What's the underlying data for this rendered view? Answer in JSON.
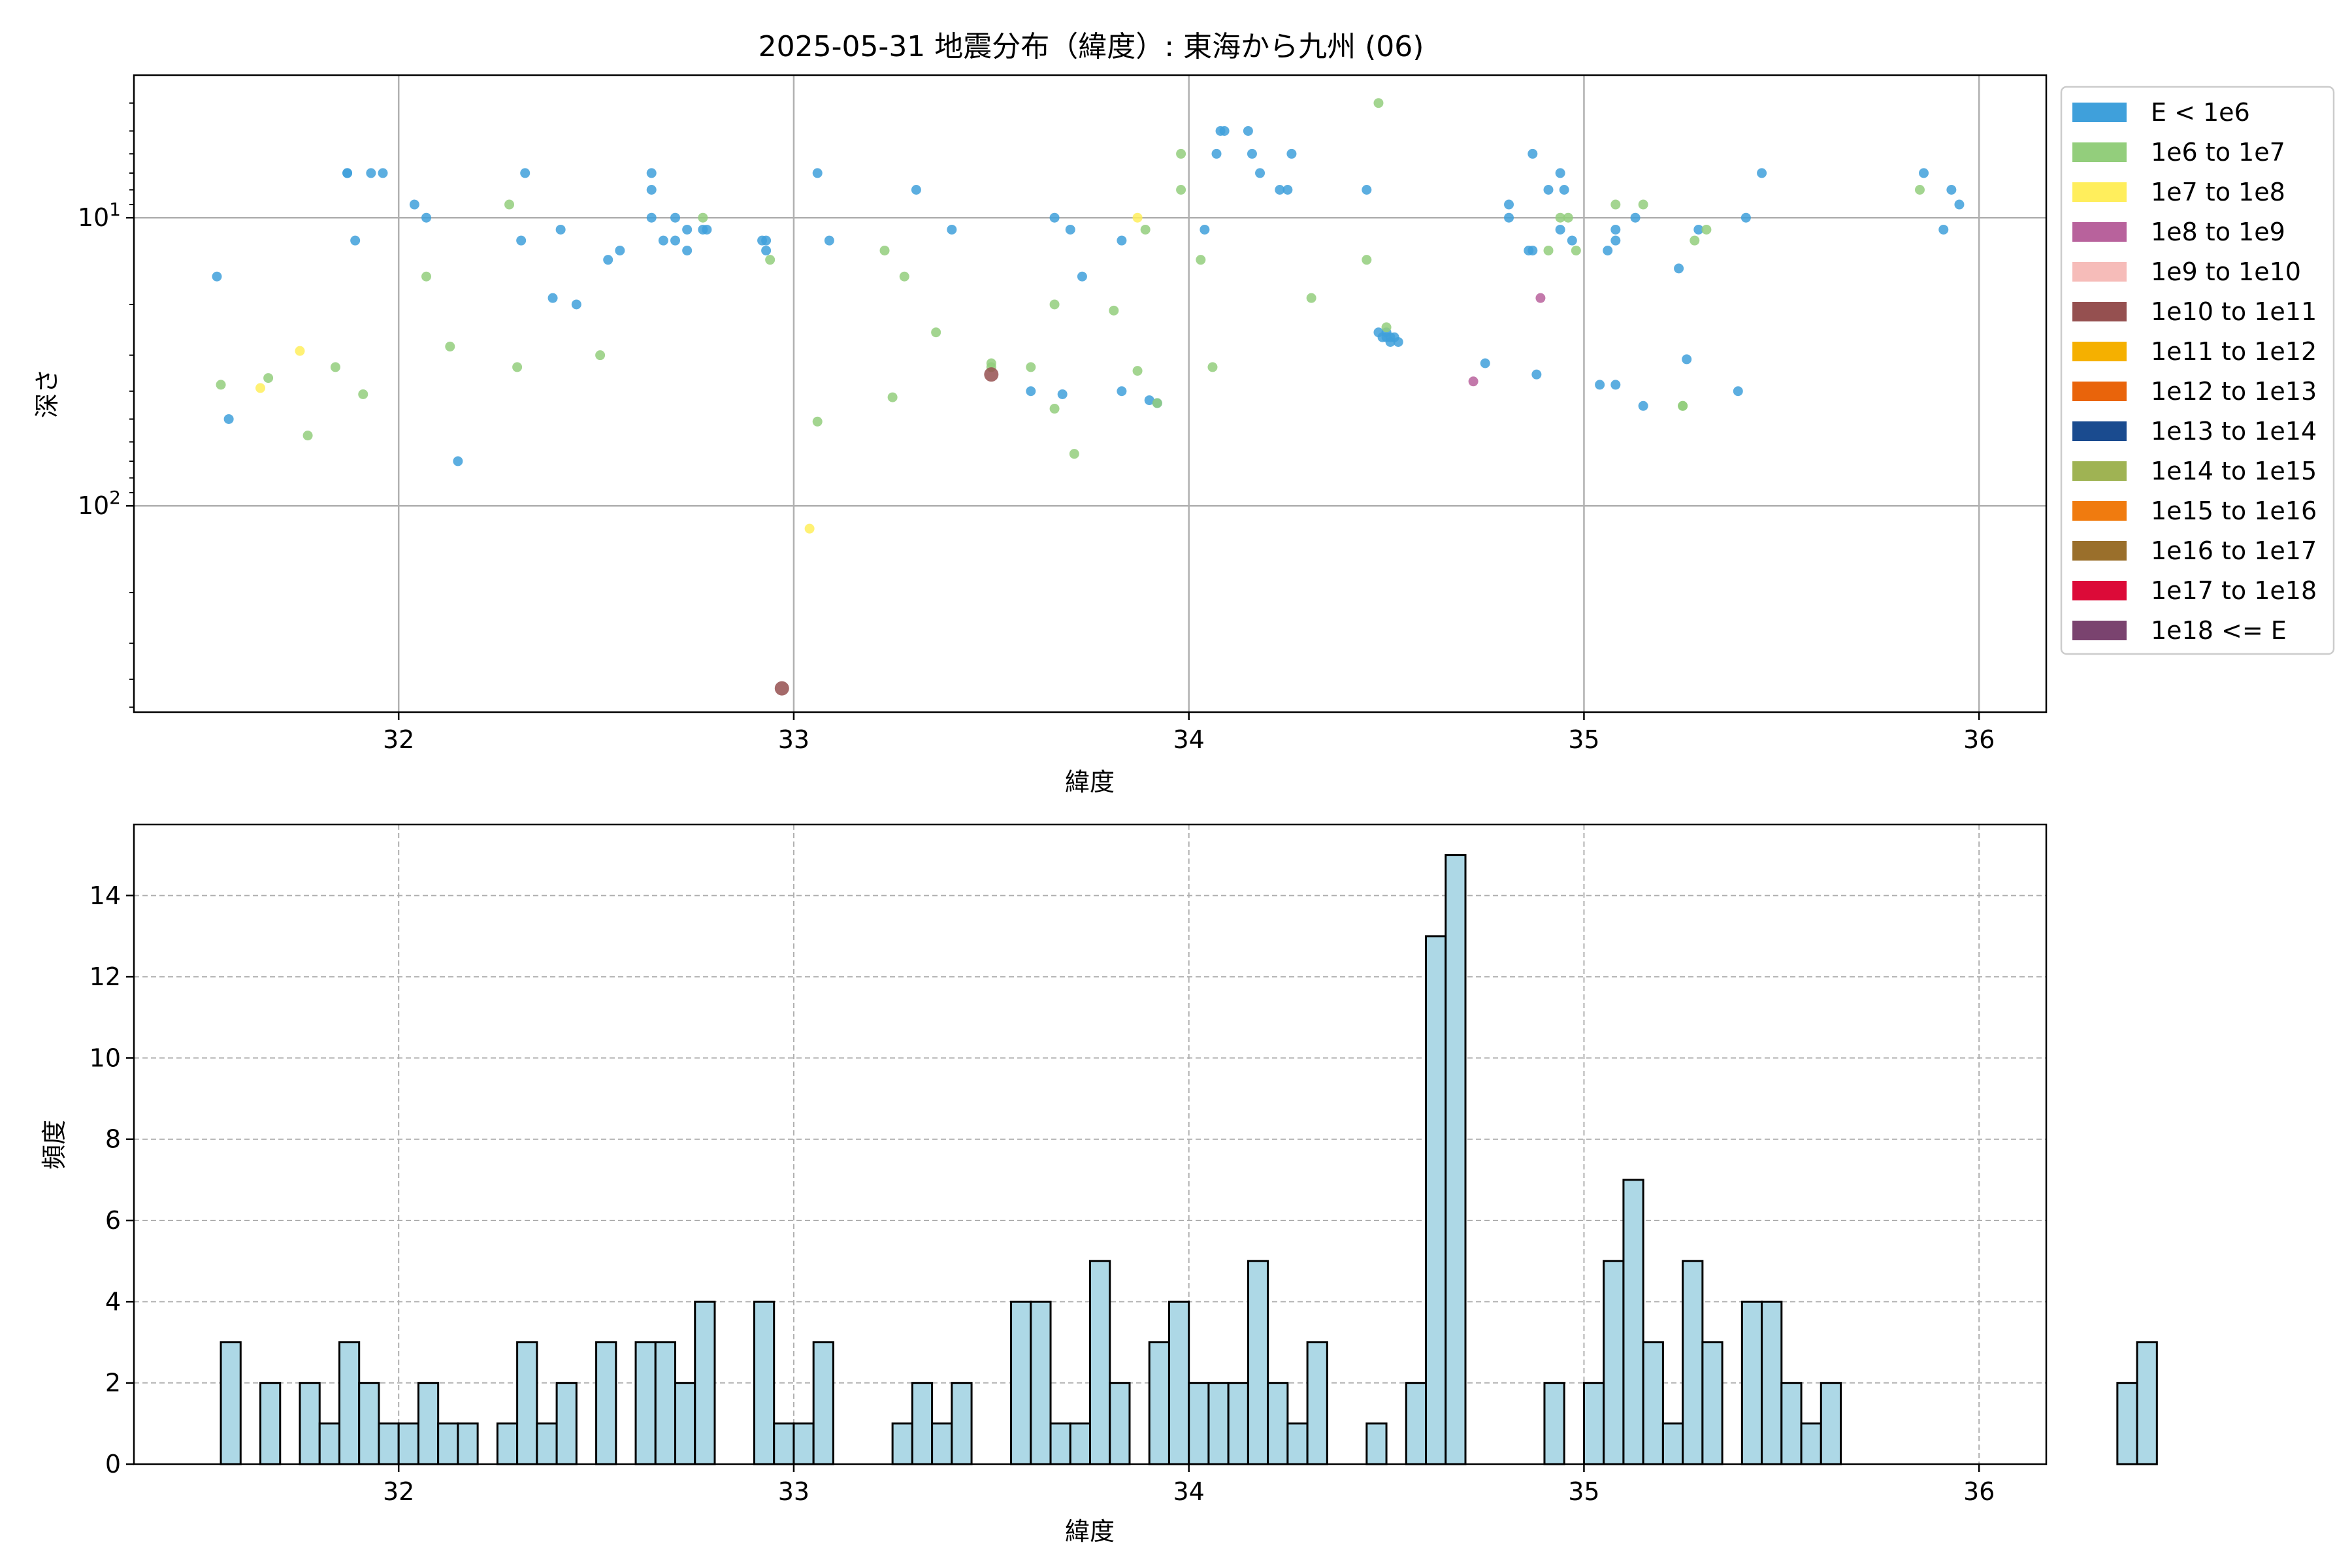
{
  "title": "2025-05-31 地震分布（緯度）: 東海から九州 (06)",
  "chart_data": [
    {
      "type": "scatter",
      "xlabel": "緯度",
      "ylabel": "深さ",
      "xlim": [
        31.33,
        36.17
      ],
      "ylim": [
        520,
        3.2
      ],
      "yscale": "log",
      "y_inverted": true,
      "grid": true,
      "xticks": [
        32,
        33,
        34,
        35,
        36
      ],
      "yticks": [
        {
          "value": 10,
          "label": "10^1"
        },
        {
          "value": 100,
          "label": "10^2"
        }
      ],
      "legend_position": "outside-right",
      "legend": [
        {
          "label": "E < 1e6",
          "color": "#3fa0db"
        },
        {
          "label": "1e6 to 1e7",
          "color": "#93ce7c"
        },
        {
          "label": "1e7 to 1e8",
          "color": "#ffee5c"
        },
        {
          "label": "1e8 to 1e9",
          "color": "#b8629c"
        },
        {
          "label": "1e9 to 1e10",
          "color": "#f6bcb9"
        },
        {
          "label": "1e10 to 1e11",
          "color": "#955050"
        },
        {
          "label": "1e11 to 1e12",
          "color": "#f5b000"
        },
        {
          "label": "1e12 to 1e13",
          "color": "#e9640b"
        },
        {
          "label": "1e13 to 1e14",
          "color": "#1a4b8f"
        },
        {
          "label": "1e14 to 1e15",
          "color": "#9fb353"
        },
        {
          "label": "1e15 to 1e16",
          "color": "#f07b0f"
        },
        {
          "label": "1e16 to 1e17",
          "color": "#9a6f2b"
        },
        {
          "label": "1e17 to 1e18",
          "color": "#dc0a38"
        },
        {
          "label": "1e18 <= E",
          "color": "#7a436f"
        }
      ],
      "series": [
        {
          "class": 0,
          "points": [
            [
              31.54,
              16.0
            ],
            [
              31.57,
              50.0
            ],
            [
              31.87,
              7.0
            ],
            [
              31.87,
              7.0
            ],
            [
              31.89,
              12.0
            ],
            [
              31.93,
              7.0
            ],
            [
              31.96,
              7.0
            ],
            [
              32.04,
              9.0
            ],
            [
              32.07,
              10.0
            ],
            [
              32.15,
              70.0
            ],
            [
              32.31,
              12.0
            ],
            [
              32.32,
              7.0
            ],
            [
              32.39,
              19.0
            ],
            [
              32.41,
              11.0
            ],
            [
              32.45,
              20.0
            ],
            [
              32.53,
              14.0
            ],
            [
              32.56,
              13.0
            ],
            [
              32.64,
              7.0
            ],
            [
              32.64,
              8.0
            ],
            [
              32.64,
              10.0
            ],
            [
              32.67,
              12.0
            ],
            [
              32.7,
              12.0
            ],
            [
              32.7,
              10.0
            ],
            [
              32.73,
              11.0
            ],
            [
              32.73,
              13.0
            ],
            [
              32.77,
              11.0
            ],
            [
              32.78,
              11.0
            ],
            [
              32.92,
              12.0
            ],
            [
              32.93,
              12.0
            ],
            [
              32.93,
              13.0
            ],
            [
              33.06,
              7.0
            ],
            [
              33.09,
              12.0
            ],
            [
              33.31,
              8.0
            ],
            [
              33.4,
              11.0
            ],
            [
              33.6,
              40.0
            ],
            [
              33.66,
              10.0
            ],
            [
              33.68,
              41.0
            ],
            [
              33.7,
              11.0
            ],
            [
              33.73,
              16.0
            ],
            [
              33.83,
              40.0
            ],
            [
              33.83,
              12.0
            ],
            [
              33.9,
              43.0
            ],
            [
              33.92,
              44.0
            ],
            [
              34.04,
              11.0
            ],
            [
              34.07,
              6.0
            ],
            [
              34.08,
              5.0
            ],
            [
              34.09,
              5.0
            ],
            [
              34.15,
              5.0
            ],
            [
              34.16,
              6.0
            ],
            [
              34.18,
              7.0
            ],
            [
              34.23,
              8.0
            ],
            [
              34.25,
              8.0
            ],
            [
              34.26,
              6.0
            ],
            [
              34.45,
              8.0
            ],
            [
              34.48,
              25.0
            ],
            [
              34.49,
              26.0
            ],
            [
              34.5,
              25.0
            ],
            [
              34.51,
              27.0
            ],
            [
              34.52,
              26.0
            ],
            [
              34.53,
              27.0
            ],
            [
              34.5,
              26.0
            ],
            [
              34.51,
              26.0
            ],
            [
              34.75,
              32.0
            ],
            [
              34.81,
              9.0
            ],
            [
              34.81,
              10.0
            ],
            [
              34.86,
              13.0
            ],
            [
              34.87,
              13.0
            ],
            [
              34.88,
              35.0
            ],
            [
              34.87,
              6.0
            ],
            [
              34.91,
              8.0
            ],
            [
              34.94,
              7.0
            ],
            [
              34.95,
              8.0
            ],
            [
              34.94,
              11.0
            ],
            [
              34.97,
              12.0
            ],
            [
              35.04,
              38.0
            ],
            [
              35.06,
              13.0
            ],
            [
              35.08,
              11.0
            ],
            [
              35.08,
              12.0
            ],
            [
              35.08,
              38.0
            ],
            [
              35.13,
              10.0
            ],
            [
              35.15,
              45.0
            ],
            [
              35.24,
              15.0
            ],
            [
              35.26,
              31.0
            ],
            [
              35.29,
              11.0
            ],
            [
              35.39,
              40.0
            ],
            [
              35.41,
              10.0
            ],
            [
              35.45,
              7.0
            ],
            [
              35.86,
              7.0
            ],
            [
              35.91,
              11.0
            ],
            [
              35.93,
              8.0
            ],
            [
              35.95,
              9.0
            ]
          ]
        },
        {
          "class": 1,
          "points": [
            [
              31.55,
              38.0
            ],
            [
              31.67,
              36.0
            ],
            [
              31.77,
              57.0
            ],
            [
              31.84,
              33.0
            ],
            [
              31.91,
              41.0
            ],
            [
              32.07,
              16.0
            ],
            [
              32.13,
              28.0
            ],
            [
              32.28,
              9.0
            ],
            [
              32.3,
              33.0
            ],
            [
              32.51,
              30.0
            ],
            [
              32.77,
              10.0
            ],
            [
              32.94,
              14.0
            ],
            [
              33.06,
              51.0
            ],
            [
              33.23,
              13.0
            ],
            [
              33.25,
              42.0
            ],
            [
              33.28,
              16.0
            ],
            [
              33.36,
              25.0
            ],
            [
              33.5,
              32.0
            ],
            [
              33.5,
              33.0
            ],
            [
              33.6,
              33.0
            ],
            [
              33.66,
              46.0
            ],
            [
              33.66,
              20.0
            ],
            [
              33.71,
              66.0
            ],
            [
              33.81,
              21.0
            ],
            [
              33.87,
              34.0
            ],
            [
              33.89,
              11.0
            ],
            [
              33.92,
              44.0
            ],
            [
              33.98,
              8.0
            ],
            [
              33.98,
              6.0
            ],
            [
              34.03,
              14.0
            ],
            [
              34.06,
              33.0
            ],
            [
              34.31,
              19.0
            ],
            [
              34.45,
              14.0
            ],
            [
              34.48,
              4.0
            ],
            [
              34.5,
              24.0
            ],
            [
              34.91,
              13.0
            ],
            [
              34.94,
              10.0
            ],
            [
              34.96,
              10.0
            ],
            [
              34.98,
              13.0
            ],
            [
              35.08,
              9.0
            ],
            [
              35.15,
              9.0
            ],
            [
              35.25,
              45.0
            ],
            [
              35.25,
              45.0
            ],
            [
              35.28,
              12.0
            ],
            [
              35.31,
              11.0
            ],
            [
              35.85,
              8.0
            ]
          ]
        },
        {
          "class": 2,
          "points": [
            [
              31.65,
              39.0
            ],
            [
              31.75,
              29.0
            ],
            [
              33.04,
              120.0
            ],
            [
              33.87,
              10.0
            ]
          ]
        },
        {
          "class": 3,
          "points": [
            [
              34.72,
              37.0
            ],
            [
              34.89,
              19.0
            ]
          ]
        },
        {
          "class": 5,
          "points": [
            [
              32.97,
              430.0
            ],
            [
              33.5,
              35.0
            ]
          ]
        }
      ]
    },
    {
      "type": "bar",
      "xlabel": "緯度",
      "ylabel": "頻度",
      "xlim": [
        31.33,
        36.17
      ],
      "ylim": [
        0,
        15.75
      ],
      "xticks": [
        32,
        33,
        34,
        35,
        36
      ],
      "yticks": [
        0,
        2,
        4,
        6,
        8,
        10,
        12,
        14
      ],
      "grid": true,
      "bar_color": "#add8e6",
      "bin_start": 31.55,
      "bin_width": 0.05,
      "values": [
        3,
        0,
        2,
        0,
        2,
        1,
        3,
        2,
        1,
        1,
        2,
        1,
        1,
        0,
        1,
        3,
        1,
        2,
        0,
        3,
        0,
        3,
        3,
        2,
        4,
        0,
        0,
        4,
        1,
        1,
        3,
        0,
        0,
        0,
        1,
        2,
        1,
        2,
        0,
        0,
        4,
        4,
        1,
        1,
        5,
        2,
        0,
        3,
        4,
        2,
        2,
        2,
        5,
        2,
        1,
        3,
        0,
        0,
        1,
        0,
        2,
        13,
        15,
        0,
        0,
        0,
        0,
        2,
        0,
        2,
        5,
        7,
        3,
        1,
        5,
        3,
        0,
        4,
        4,
        2,
        1,
        2,
        0,
        0,
        0,
        0,
        0,
        0,
        0,
        0,
        0,
        0,
        0,
        0,
        0,
        0,
        2,
        3
      ]
    }
  ]
}
